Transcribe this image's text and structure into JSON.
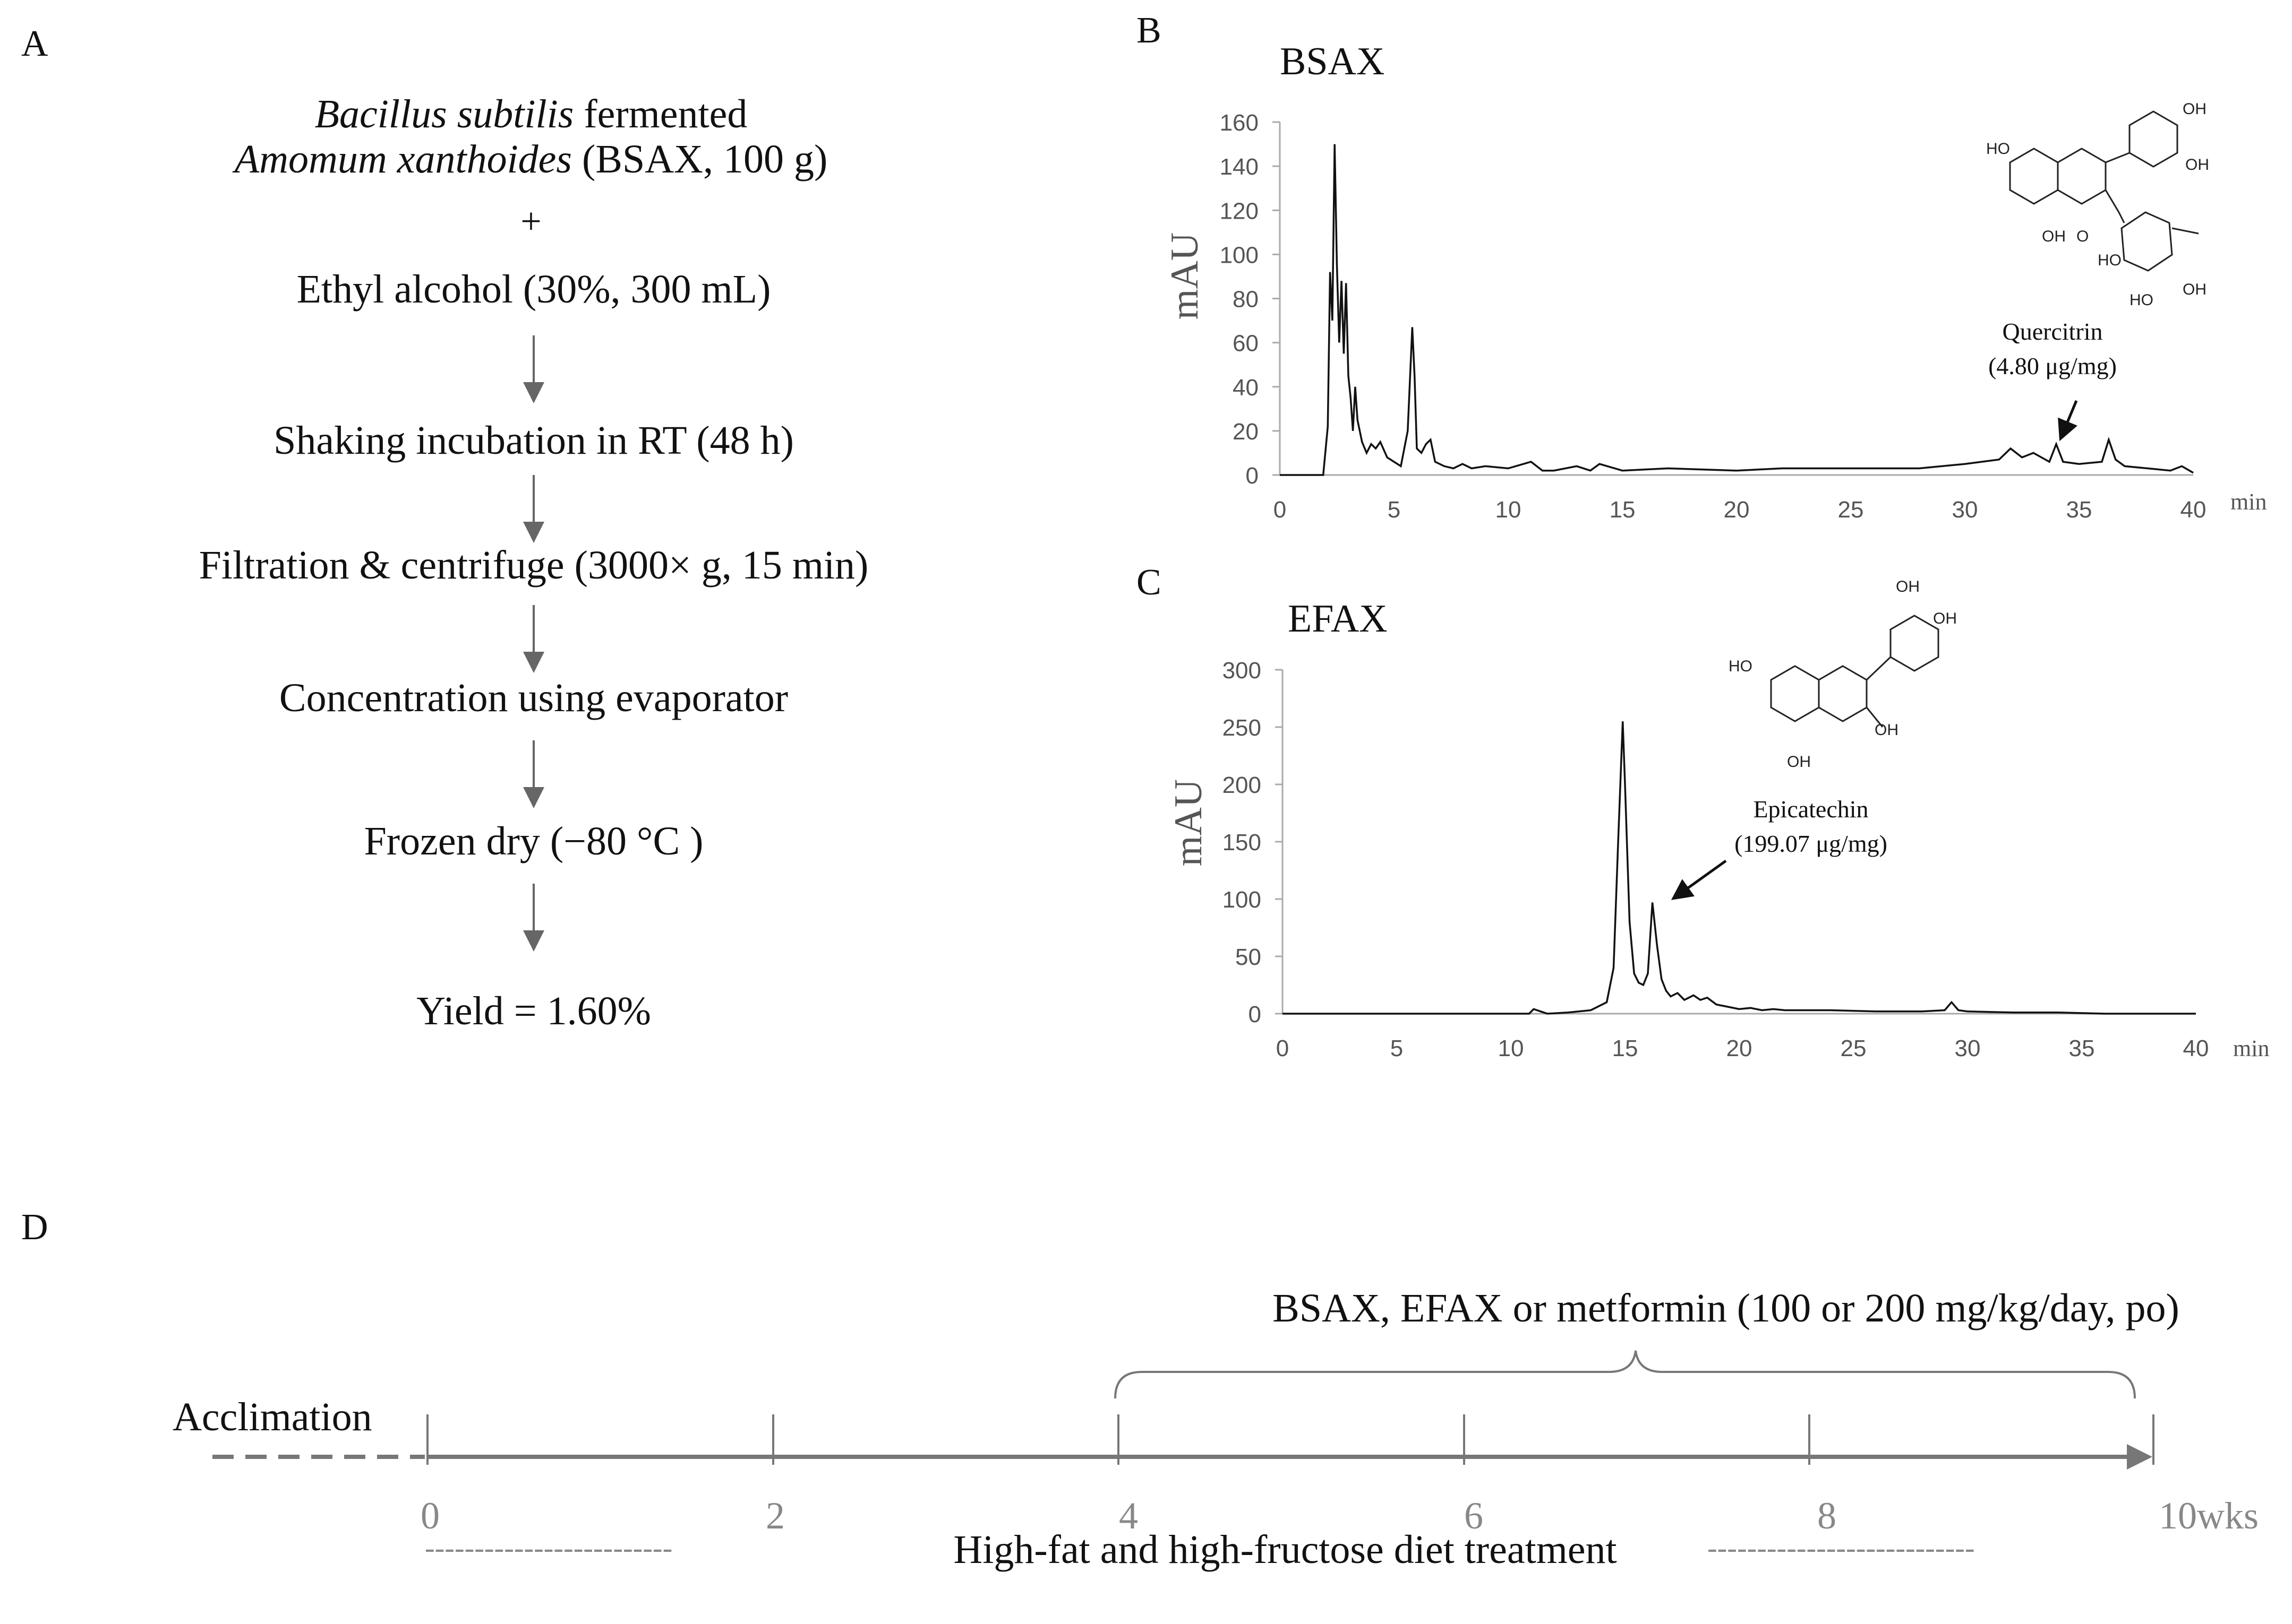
{
  "colors": {
    "text": "#111111",
    "axis": "#aaaaaa",
    "tick_label": "#555555",
    "timeline": "#777777",
    "arrow": "#666666"
  },
  "panel_a": {
    "label": "A",
    "title_italic_1": "Bacillus subtilis",
    "title_rest_1": " fermented",
    "title_italic_2": "Amomum xanthoides",
    "title_rest_2": " (BSAX, 100 g)",
    "plus": "+",
    "steps": [
      "Ethyl alcohol (30%, 300 mL)",
      "Shaking incubation in RT (48 h)",
      "Filtration & centrifuge (3000× g, 15 min)",
      "Concentration using evaporator",
      "Frozen dry (−80 °C )",
      "Yield = 1.60%"
    ]
  },
  "chart_data": [
    {
      "panel": "B",
      "type": "line",
      "title": "BSAX",
      "xlabel": "min",
      "ylabel": "mAU",
      "xlim": [
        0,
        40
      ],
      "ylim": [
        0,
        160
      ],
      "xticks": [
        0,
        5,
        10,
        15,
        20,
        25,
        30,
        35,
        40
      ],
      "yticks": [
        0,
        20,
        40,
        60,
        80,
        100,
        120,
        140,
        160
      ],
      "annotation": {
        "compound": "Quercitrin",
        "amount": "(4.80 μg/mg)",
        "peak_x": 34,
        "peak_y": 14
      },
      "series": [
        {
          "name": "BSAX chromatogram",
          "x": [
            0,
            1.9,
            2.1,
            2.2,
            2.3,
            2.4,
            2.5,
            2.6,
            2.7,
            2.8,
            2.9,
            3.0,
            3.1,
            3.2,
            3.3,
            3.4,
            3.6,
            3.8,
            4.0,
            4.2,
            4.4,
            4.7,
            5.0,
            5.3,
            5.6,
            5.8,
            5.9,
            6.0,
            6.2,
            6.4,
            6.6,
            6.8,
            7.2,
            7.6,
            8.0,
            8.4,
            9.0,
            10.0,
            11.0,
            11.5,
            12.0,
            13.0,
            13.6,
            14.0,
            15.0,
            17.0,
            20.0,
            22.0,
            25.0,
            28.0,
            30.0,
            31.5,
            32.0,
            32.5,
            33.0,
            33.7,
            34.0,
            34.3,
            35.0,
            36.0,
            36.3,
            36.6,
            37.0,
            38.0,
            39.0,
            39.5,
            40.0
          ],
          "y": [
            0,
            0,
            22,
            92,
            70,
            150,
            95,
            60,
            88,
            55,
            87,
            45,
            35,
            20,
            40,
            25,
            15,
            10,
            14,
            12,
            15,
            8,
            6,
            4,
            20,
            67,
            45,
            12,
            10,
            14,
            16,
            6,
            4,
            3,
            5,
            3,
            4,
            3,
            6,
            2,
            2,
            4,
            2,
            5,
            2,
            3,
            2,
            3,
            3,
            3,
            5,
            7,
            12,
            8,
            10,
            6,
            14,
            6,
            5,
            6,
            16,
            7,
            4,
            3,
            2,
            4,
            1
          ]
        }
      ]
    },
    {
      "panel": "C",
      "type": "line",
      "title": "EFAX",
      "xlabel": "min",
      "ylabel": "mAU",
      "xlim": [
        0,
        40
      ],
      "ylim": [
        0,
        300
      ],
      "xticks": [
        0,
        5,
        10,
        15,
        20,
        25,
        30,
        35,
        40
      ],
      "yticks": [
        0,
        50,
        100,
        150,
        200,
        250,
        300
      ],
      "annotation": {
        "compound": "Epicatechin",
        "amount": "(199.07 μg/mg)",
        "peak_x": 16.3,
        "peak_y": 97
      },
      "series": [
        {
          "name": "EFAX chromatogram",
          "x": [
            0,
            10.8,
            11.0,
            11.3,
            11.6,
            12.5,
            13.5,
            14.2,
            14.5,
            14.7,
            14.9,
            15.0,
            15.2,
            15.4,
            15.6,
            15.8,
            16.0,
            16.2,
            16.4,
            16.6,
            16.8,
            17.0,
            17.3,
            17.6,
            18.0,
            18.3,
            18.6,
            19.0,
            19.5,
            20.0,
            20.5,
            21.0,
            21.5,
            22.0,
            24.0,
            26.0,
            28.0,
            29.0,
            29.3,
            29.6,
            30.0,
            32.0,
            34.0,
            36.0,
            40.0
          ],
          "y": [
            0,
            0,
            4,
            2,
            0,
            1,
            3,
            10,
            40,
            150,
            255,
            200,
            80,
            35,
            27,
            25,
            35,
            97,
            60,
            30,
            20,
            15,
            18,
            12,
            16,
            12,
            14,
            8,
            6,
            4,
            5,
            3,
            4,
            3,
            3,
            2,
            2,
            3,
            10,
            3,
            2,
            1,
            1,
            0,
            0
          ]
        }
      ]
    }
  ],
  "panel_b": {
    "label": "B"
  },
  "panel_c": {
    "label": "C"
  },
  "panel_d": {
    "label": "D",
    "treatment_label": "BSAX, EFAX or metformin (100 or 200 mg/kg/day,  po)",
    "acclimation": "Acclimation",
    "ticks": [
      "0",
      "2",
      "4",
      "6",
      "8",
      "10wks"
    ],
    "diet_label": "High-fat and high-fructose diet treatment",
    "dash_left": "-------------------------",
    "dash_right": "---------------------------"
  }
}
